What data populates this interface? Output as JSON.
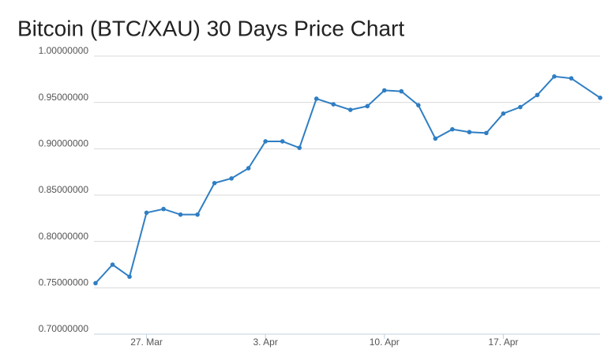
{
  "chart_data": {
    "type": "line",
    "title": "Bitcoin (BTC/XAU) 30 Days Price Chart",
    "x": [
      0,
      1,
      2,
      3,
      4,
      5,
      6,
      7,
      8,
      9,
      10,
      11,
      12,
      13,
      14,
      15,
      16,
      17,
      18,
      19,
      20,
      21,
      22,
      23,
      24,
      25,
      26,
      27,
      28,
      29.7
    ],
    "series": [
      {
        "name": "BTC/XAU",
        "color": "#2f7ec3",
        "values": [
          0.755,
          0.775,
          0.762,
          0.831,
          0.835,
          0.829,
          0.829,
          0.863,
          0.868,
          0.879,
          0.908,
          0.908,
          0.901,
          0.954,
          0.948,
          0.942,
          0.946,
          0.963,
          0.962,
          0.947,
          0.911,
          0.921,
          0.918,
          0.917,
          0.938,
          0.945,
          0.958,
          0.978,
          0.976,
          0.955
        ]
      }
    ],
    "xlim": [
      0,
      29.7
    ],
    "xticks": [
      {
        "value": 3,
        "label": "27. Mar"
      },
      {
        "value": 10,
        "label": "3. Apr"
      },
      {
        "value": 17,
        "label": "10. Apr"
      },
      {
        "value": 24,
        "label": "17. Apr"
      }
    ],
    "ylim": [
      0.7,
      1
    ],
    "yticks": [
      {
        "value": 0.7,
        "label": "0.70000000"
      },
      {
        "value": 0.75,
        "label": "0.75000000"
      },
      {
        "value": 0.8,
        "label": "0.80000000"
      },
      {
        "value": 0.85,
        "label": "0.85000000"
      },
      {
        "value": 0.9,
        "label": "0.90000000"
      },
      {
        "value": 0.95,
        "label": "0.95000000"
      },
      {
        "value": 1,
        "label": "1.00000000"
      }
    ],
    "grid": true
  }
}
